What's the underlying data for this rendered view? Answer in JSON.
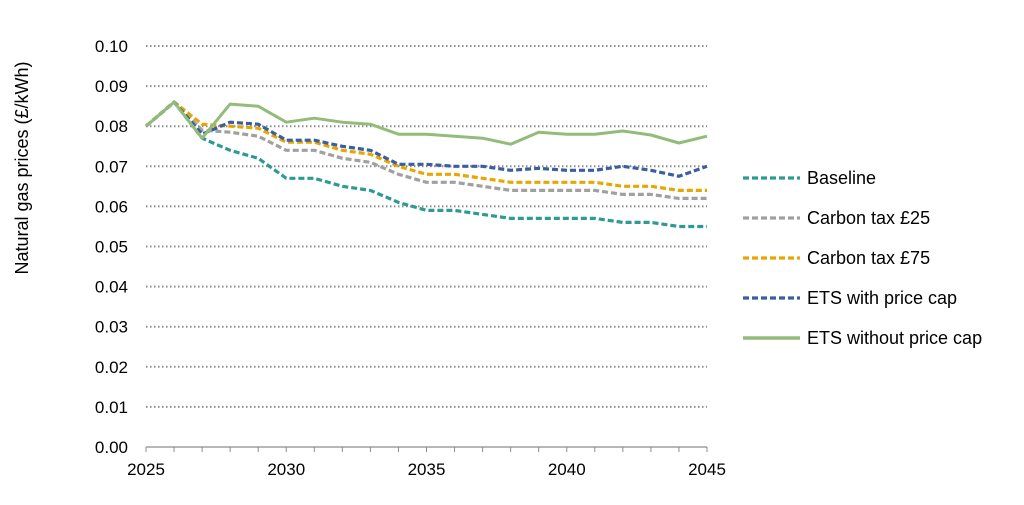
{
  "chart_data": {
    "type": "line",
    "title": "",
    "xlabel": "",
    "ylabel": "Natural gas prices (£/kWh)",
    "xlim": [
      2025,
      2045
    ],
    "ylim": [
      0,
      0.1
    ],
    "x_ticks": [
      "2025",
      "2030",
      "2035",
      "2040",
      "2045"
    ],
    "y_ticks": [
      "0.00",
      "0.01",
      "0.02",
      "0.03",
      "0.04",
      "0.05",
      "0.06",
      "0.07",
      "0.08",
      "0.09",
      "0.10"
    ],
    "grid": "horizontal dotted",
    "legend_position": "right",
    "x": [
      2025,
      2026,
      2027,
      2028,
      2029,
      2030,
      2031,
      2032,
      2033,
      2034,
      2035,
      2036,
      2037,
      2038,
      2039,
      2040,
      2041,
      2042,
      2043,
      2044,
      2045
    ],
    "series": [
      {
        "name": "Baseline",
        "color": "#2e9a93",
        "style": "dashed",
        "values": [
          0.08,
          0.086,
          0.077,
          0.074,
          0.072,
          0.067,
          0.067,
          0.065,
          0.064,
          0.061,
          0.059,
          0.059,
          0.058,
          0.057,
          0.057,
          0.057,
          0.057,
          0.056,
          0.056,
          0.055,
          0.055
        ]
      },
      {
        "name": "Carbon tax £25",
        "color": "#a0a0a0",
        "style": "dashed",
        "values": [
          0.08,
          0.086,
          0.079,
          0.0785,
          0.0775,
          0.074,
          0.074,
          0.072,
          0.071,
          0.068,
          0.066,
          0.066,
          0.065,
          0.064,
          0.064,
          0.064,
          0.064,
          0.063,
          0.063,
          0.062,
          0.062
        ]
      },
      {
        "name": "Carbon tax £75",
        "color": "#e6a700",
        "style": "dashed",
        "values": [
          0.08,
          0.086,
          0.0805,
          0.08,
          0.0795,
          0.076,
          0.076,
          0.074,
          0.073,
          0.07,
          0.068,
          0.068,
          0.067,
          0.066,
          0.066,
          0.066,
          0.066,
          0.065,
          0.065,
          0.064,
          0.064
        ]
      },
      {
        "name": "ETS with price cap",
        "color": "#3a5ea0",
        "style": "dashed",
        "values": [
          0.08,
          0.086,
          0.078,
          0.081,
          0.0805,
          0.0765,
          0.0765,
          0.075,
          0.074,
          0.0705,
          0.0705,
          0.07,
          0.07,
          0.069,
          0.0695,
          0.069,
          0.069,
          0.07,
          0.069,
          0.0675,
          0.07
        ]
      },
      {
        "name": "ETS without price cap",
        "color": "#93bb7a",
        "style": "solid",
        "values": [
          0.08,
          0.086,
          0.077,
          0.0855,
          0.085,
          0.081,
          0.082,
          0.081,
          0.0805,
          0.078,
          0.078,
          0.0775,
          0.077,
          0.0755,
          0.0785,
          0.078,
          0.078,
          0.0788,
          0.0778,
          0.0758,
          0.0775
        ]
      }
    ]
  }
}
